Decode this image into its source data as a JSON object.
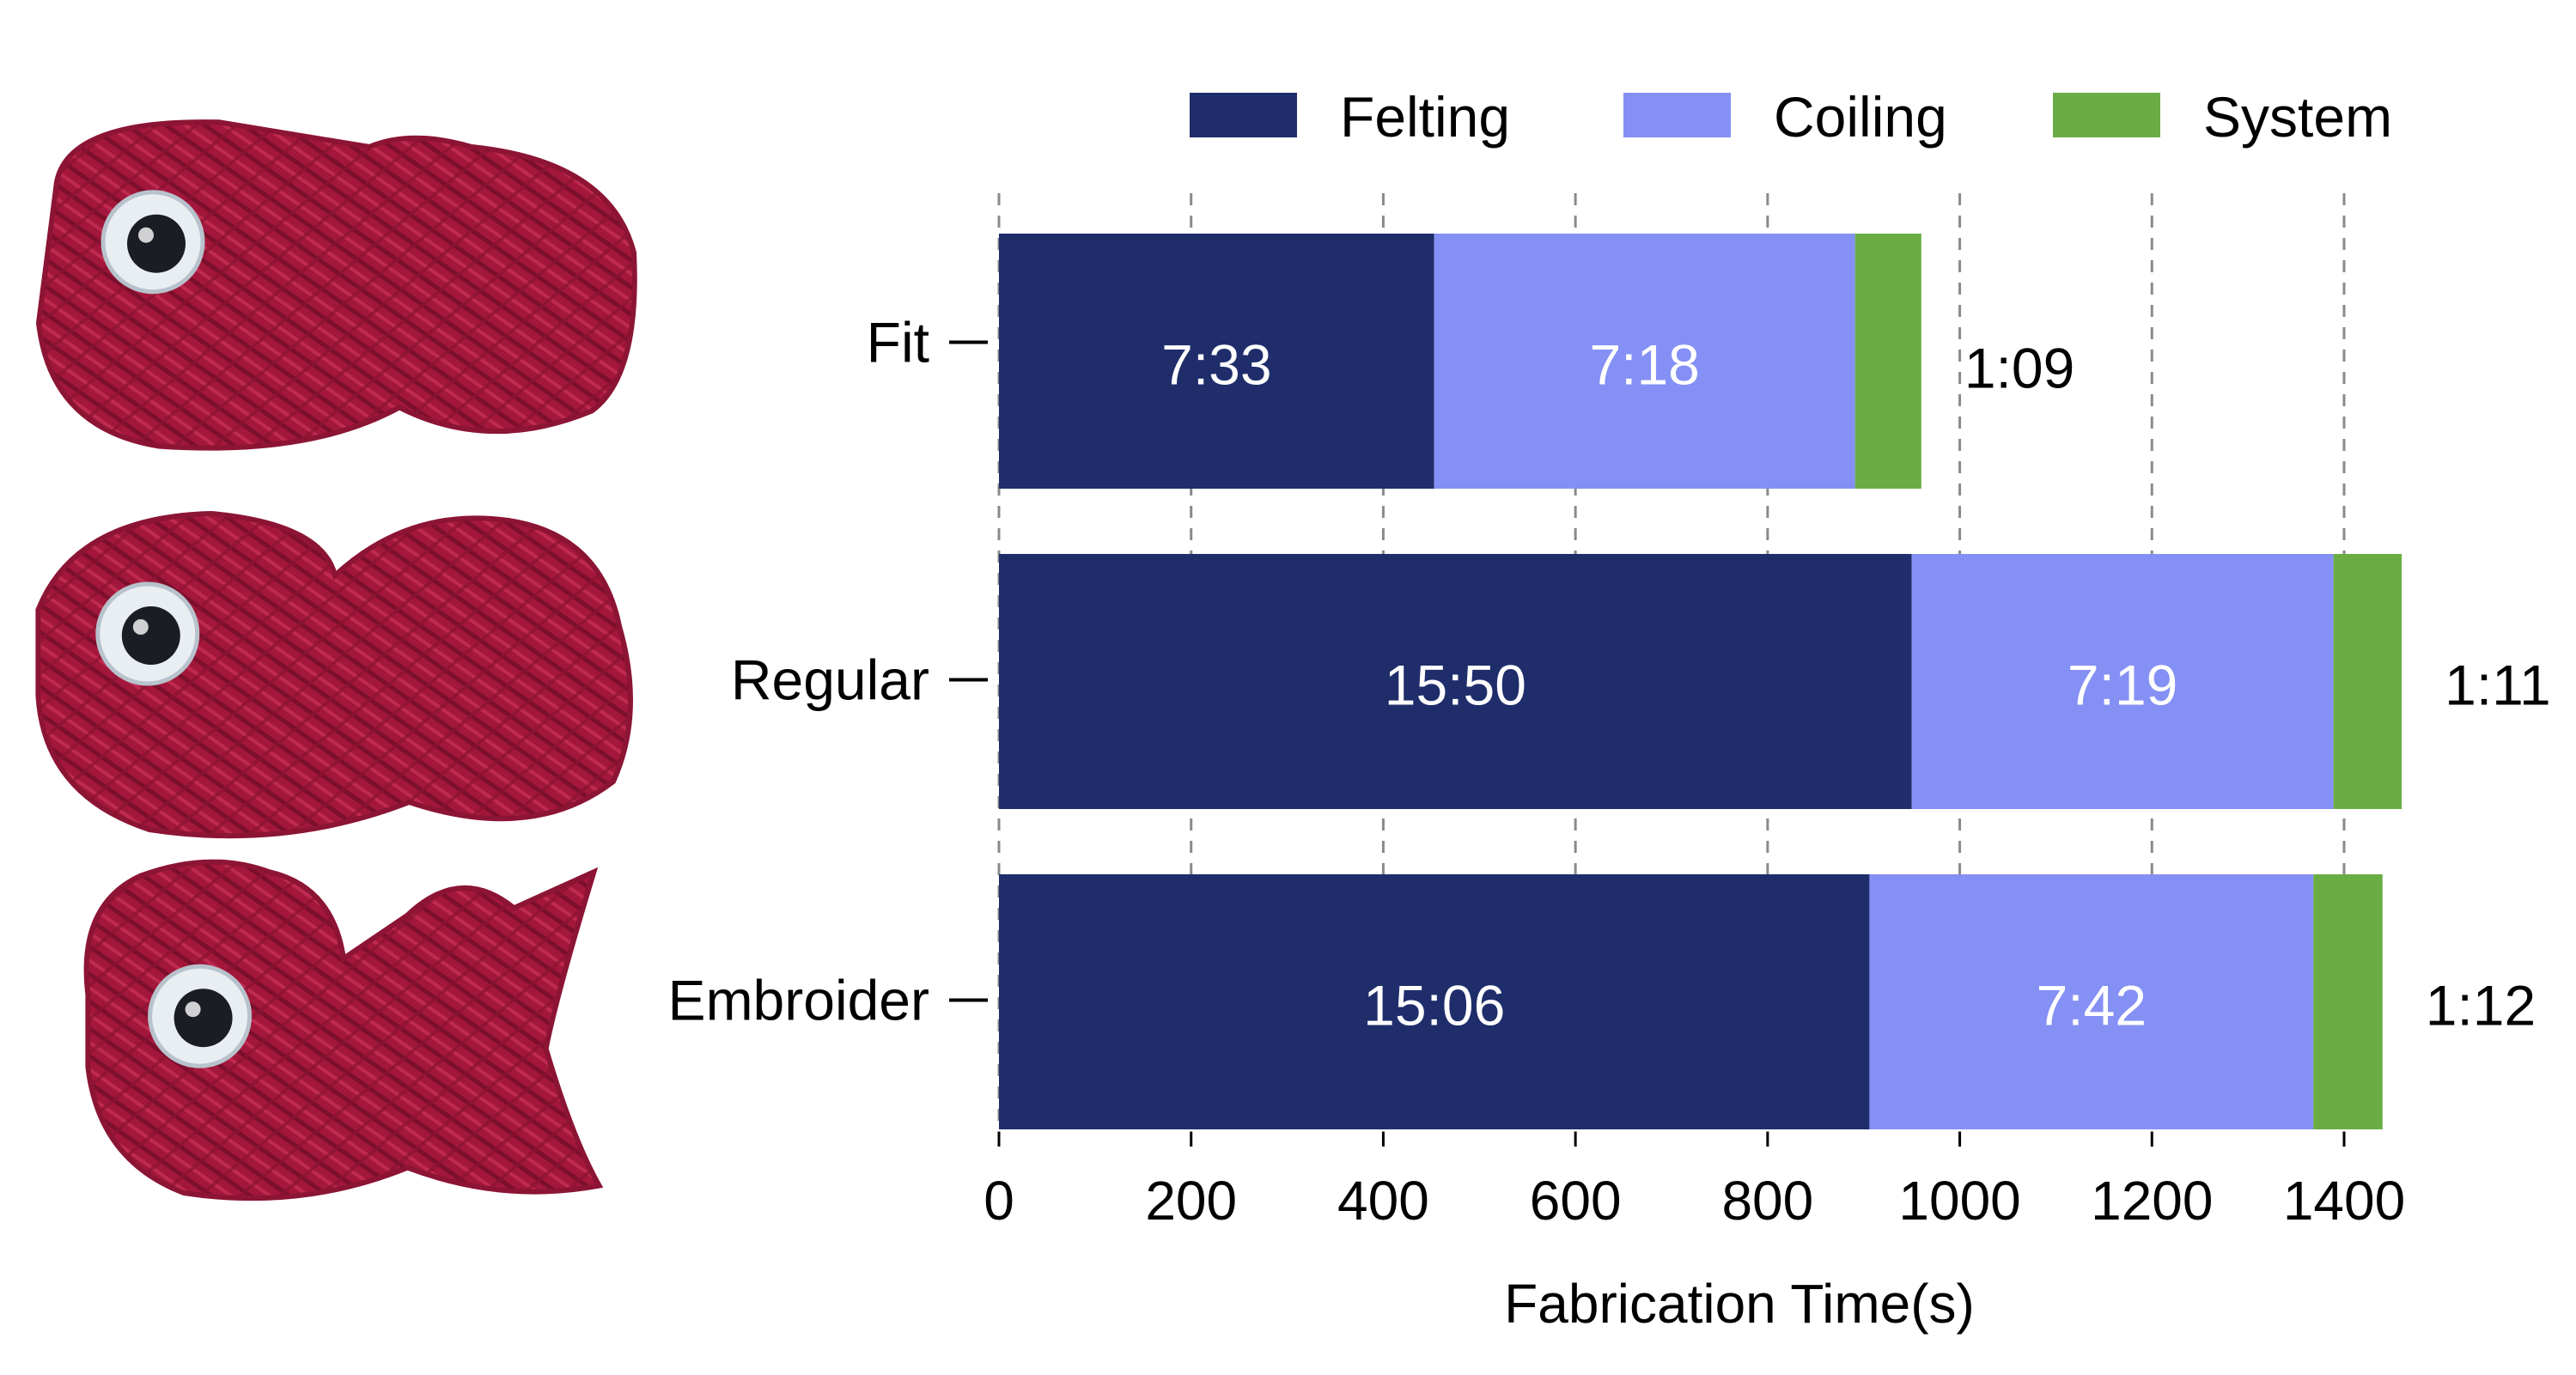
{
  "chart_data": {
    "type": "bar",
    "orientation": "horizontal",
    "stacked": true,
    "categories": [
      "Fit",
      "Regular",
      "Embroider"
    ],
    "series": [
      {
        "name": "Felting",
        "color": "#1f2d6b",
        "values": [
          453,
          950,
          906
        ],
        "labels": [
          "7:33",
          "15:50",
          "15:06"
        ]
      },
      {
        "name": "Coiling",
        "color": "#8590f5",
        "values": [
          438,
          439,
          462
        ],
        "labels": [
          "7:18",
          "7:19",
          "7:42"
        ]
      },
      {
        "name": "System",
        "color": "#6aad45",
        "values": [
          69,
          71,
          72
        ],
        "labels": [
          "1:09",
          "1:11",
          "1:12"
        ]
      }
    ],
    "xlabel": "Fabrication Time(s)",
    "xlim": [
      0,
      1450
    ],
    "xticks": [
      0,
      200,
      400,
      600,
      800,
      1000,
      1200,
      1400
    ],
    "grid": {
      "x": true,
      "style": "dashed"
    },
    "legend": "top-right"
  },
  "images": [
    {
      "name": "yarn-fish-fit",
      "icon": "yarn-fish-photo",
      "yarn_color": "#a3173c"
    },
    {
      "name": "yarn-fish-regular",
      "icon": "yarn-fish-photo",
      "yarn_color": "#a3173c"
    },
    {
      "name": "yarn-fish-embroider",
      "icon": "yarn-fish-photo",
      "yarn_color": "#a3173c"
    }
  ]
}
